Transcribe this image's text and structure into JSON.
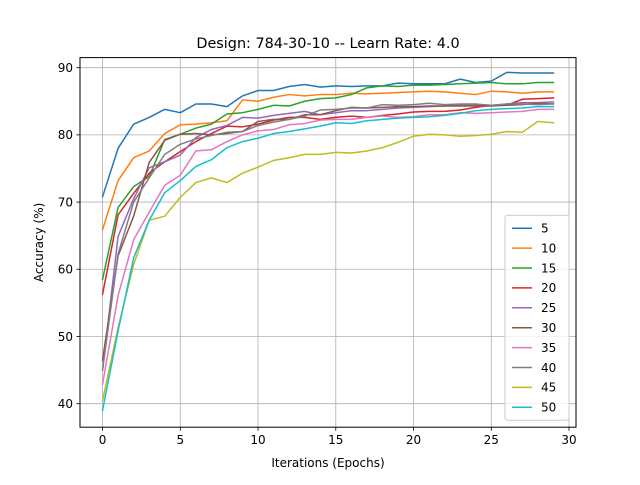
{
  "chart_data": {
    "type": "line",
    "title": "Design: 784-30-10 -- Learn Rate: 4.0",
    "xlabel": "Iterations (Epochs)",
    "ylabel": "Accuracy (%)",
    "xlim": [
      -1.45,
      30.45
    ],
    "ylim": [
      36.5,
      91.5
    ],
    "xticks": [
      0,
      5,
      10,
      15,
      20,
      25,
      30
    ],
    "yticks": [
      40,
      50,
      60,
      70,
      80,
      90
    ],
    "grid": true,
    "legend_position": "lower-right",
    "x": [
      0,
      1,
      2,
      3,
      4,
      5,
      6,
      7,
      8,
      9,
      10,
      11,
      12,
      13,
      14,
      15,
      16,
      17,
      18,
      19,
      20,
      21,
      22,
      23,
      24,
      25,
      26,
      27,
      28,
      29
    ],
    "series": [
      {
        "name": "5",
        "color": "#1f77b4",
        "values": [
          70.8,
          78.0,
          81.6,
          82.6,
          83.8,
          83.3,
          84.6,
          84.6,
          84.2,
          85.8,
          86.6,
          86.6,
          87.2,
          87.5,
          87.1,
          87.3,
          87.2,
          87.3,
          87.3,
          87.7,
          87.6,
          87.6,
          87.6,
          88.3,
          87.8,
          88.0,
          89.3,
          89.2,
          89.2,
          89.2
        ]
      },
      {
        "name": "10",
        "color": "#ff7f0e",
        "values": [
          65.9,
          73.2,
          76.6,
          77.6,
          80.2,
          81.5,
          81.6,
          81.8,
          82.1,
          85.2,
          85.0,
          85.6,
          86.0,
          85.8,
          86.0,
          86.0,
          86.2,
          86.1,
          86.2,
          86.3,
          86.4,
          86.5,
          86.4,
          86.2,
          86.0,
          86.5,
          86.4,
          86.2,
          86.4,
          86.4
        ]
      },
      {
        "name": "15",
        "color": "#2ca02c",
        "values": [
          58.5,
          69.2,
          72.3,
          73.8,
          79.3,
          80.1,
          81.0,
          81.6,
          83.1,
          83.3,
          83.8,
          84.4,
          84.3,
          85.0,
          85.4,
          85.5,
          86.0,
          87.0,
          87.3,
          87.2,
          87.4,
          87.4,
          87.5,
          87.6,
          87.7,
          87.8,
          87.6,
          87.6,
          87.8,
          87.8
        ]
      },
      {
        "name": "20",
        "color": "#d62728",
        "values": [
          56.3,
          68.1,
          71.3,
          74.3,
          76.0,
          77.5,
          79.0,
          80.2,
          81.3,
          81.2,
          81.6,
          82.2,
          82.6,
          82.6,
          82.3,
          82.6,
          82.8,
          82.6,
          82.9,
          83.1,
          83.4,
          83.5,
          83.5,
          83.7,
          84.1,
          84.4,
          84.4,
          85.3,
          85.4,
          85.5
        ]
      },
      {
        "name": "25",
        "color": "#9467bd",
        "values": [
          45.0,
          64.9,
          70.5,
          75.1,
          76.0,
          77.0,
          79.6,
          80.8,
          81.4,
          82.6,
          82.5,
          82.9,
          83.2,
          83.5,
          83.0,
          83.3,
          83.6,
          83.6,
          83.8,
          84.0,
          84.1,
          84.2,
          84.3,
          84.4,
          84.5,
          84.4,
          84.6,
          84.8,
          84.8,
          84.9
        ]
      },
      {
        "name": "30",
        "color": "#8c564b",
        "values": [
          46.5,
          62.0,
          67.9,
          75.9,
          79.2,
          80.1,
          80.2,
          80.0,
          80.2,
          80.5,
          82.0,
          82.3,
          82.3,
          83.0,
          83.0,
          83.6,
          84.1,
          84.0,
          84.1,
          84.2,
          84.2,
          84.3,
          84.3,
          84.3,
          84.3,
          84.3,
          84.4,
          84.5,
          84.7,
          84.6
        ]
      },
      {
        "name": "35",
        "color": "#e377c2",
        "values": [
          42.9,
          56.1,
          64.4,
          68.5,
          72.5,
          74.0,
          77.6,
          77.8,
          79.0,
          80.0,
          80.6,
          80.8,
          81.5,
          81.7,
          82.2,
          82.3,
          82.3,
          82.6,
          82.8,
          82.6,
          82.7,
          83.0,
          83.0,
          83.3,
          83.2,
          83.3,
          83.4,
          83.5,
          83.8,
          83.8
        ]
      },
      {
        "name": "40",
        "color": "#7f7f7f",
        "values": [
          45.0,
          62.3,
          70.0,
          73.6,
          77.1,
          78.6,
          79.4,
          79.9,
          80.4,
          80.5,
          81.4,
          81.9,
          82.3,
          82.8,
          83.7,
          83.8,
          84.0,
          84.0,
          84.5,
          84.4,
          84.5,
          84.7,
          84.5,
          84.6,
          84.6,
          84.4,
          84.6,
          84.6,
          84.5,
          84.6
        ]
      },
      {
        "name": "45",
        "color": "#bcbd22",
        "values": [
          40.5,
          51.3,
          60.7,
          67.3,
          67.9,
          70.7,
          72.9,
          73.6,
          72.9,
          74.3,
          75.2,
          76.2,
          76.6,
          77.1,
          77.1,
          77.4,
          77.3,
          77.6,
          78.1,
          78.9,
          79.8,
          80.1,
          80.0,
          79.8,
          79.9,
          80.1,
          80.5,
          80.4,
          82.0,
          81.8
        ]
      },
      {
        "name": "50",
        "color": "#17becf",
        "values": [
          39.0,
          50.8,
          61.7,
          67.3,
          71.4,
          73.2,
          75.3,
          76.3,
          78.1,
          79.0,
          79.5,
          80.2,
          80.5,
          80.9,
          81.3,
          81.8,
          81.7,
          82.1,
          82.3,
          82.5,
          82.6,
          82.7,
          82.9,
          83.2,
          83.6,
          83.8,
          83.9,
          84.0,
          84.2,
          84.2
        ]
      }
    ]
  }
}
